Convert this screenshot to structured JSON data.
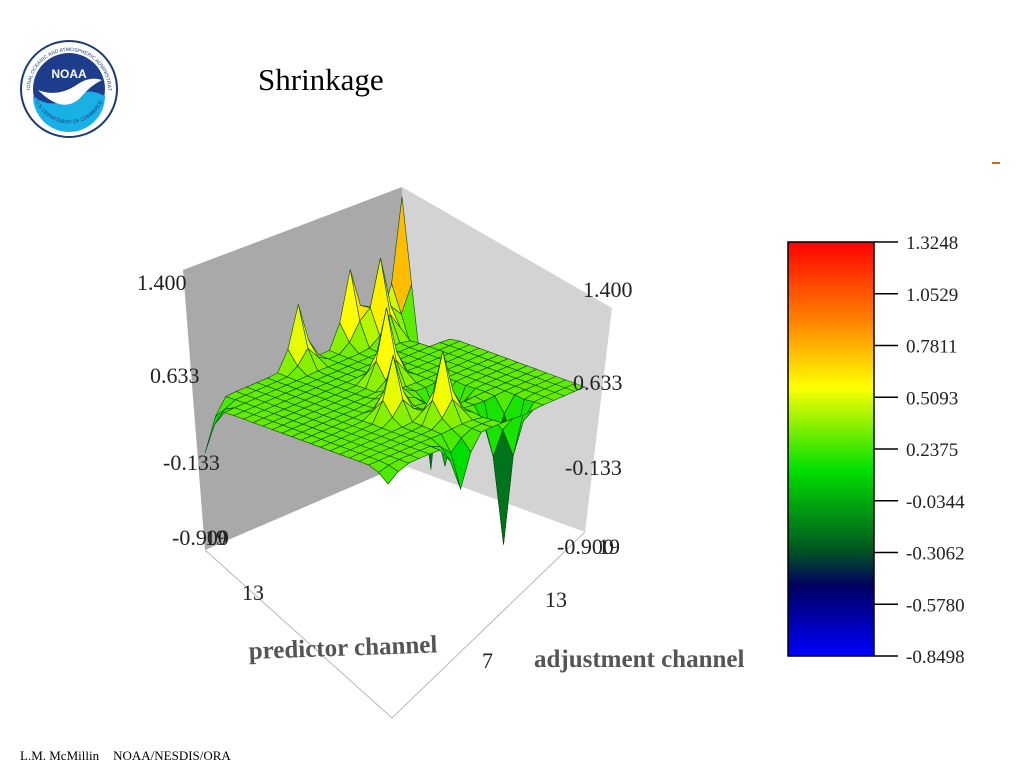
{
  "slide": {
    "title": "Shrinkage",
    "footer_author": "L.M. McMillin",
    "footer_org": "NOAA/NESDIS/ORA"
  },
  "logo": {
    "center_text": "NOAA",
    "ring_text_top": "NATIONAL OCEANIC AND ATMOSPHERIC ADMINISTRATION",
    "ring_text_bottom": "U.S. DEPARTMENT OF COMMERCE"
  },
  "chart_data": {
    "type": "surface-3d",
    "title": "Shrinkage",
    "xlabel": "predictor channel",
    "ylabel": "adjustment channel",
    "x_ticks": [
      "13",
      "7"
    ],
    "y_ticks": [
      "19",
      "13",
      "7"
    ],
    "z_ticks_left": [
      "1.400",
      "0.633",
      "-0.133",
      "-0.900"
    ],
    "z_ticks_right": [
      "1.400",
      "0.633",
      "-0.133",
      "-0.900"
    ],
    "zlim": [
      -0.9,
      1.4
    ],
    "colorbar": {
      "ticks": [
        "1.3248",
        "1.0529",
        "0.7811",
        "0.5093",
        "0.2375",
        "-0.0344",
        "-0.3062",
        "-0.5780",
        "-0.8498"
      ],
      "range": [
        -0.8498,
        1.3248
      ],
      "colors": [
        "#ff0000",
        "#ff8a00",
        "#ffff00",
        "#00e000",
        "#005a20",
        "#000060",
        "#0000ff"
      ]
    },
    "surface": {
      "grid_size": 20,
      "base_level": 0.3,
      "features": [
        {
          "predictor": 20,
          "adjustment": 20,
          "value": 1.32
        },
        {
          "predictor": 20,
          "adjustment": 17,
          "value": -0.85
        },
        {
          "predictor": 17,
          "adjustment": 19,
          "value": 0.95
        },
        {
          "predictor": 15,
          "adjustment": 20,
          "value": 0.9
        },
        {
          "predictor": 10,
          "adjustment": 20,
          "value": 0.8
        },
        {
          "predictor": 1,
          "adjustment": 20,
          "value": -0.1
        },
        {
          "predictor": 1,
          "adjustment": 1,
          "value": 0.2
        },
        {
          "predictor": 13,
          "adjustment": 8,
          "value": -0.3
        },
        {
          "predictor": 8,
          "adjustment": 1,
          "value": -0.1
        },
        {
          "predictor": 10,
          "adjustment": 10,
          "value": 0.45
        },
        {
          "predictor": 14,
          "adjustment": 3,
          "value": -0.84
        },
        {
          "predictor": 8,
          "adjustment": 8,
          "value": 0.8
        },
        {
          "predictor": 10,
          "adjustment": 5,
          "value": 0.85
        },
        {
          "predictor": 12,
          "adjustment": 13,
          "value": 0.9
        }
      ]
    }
  }
}
